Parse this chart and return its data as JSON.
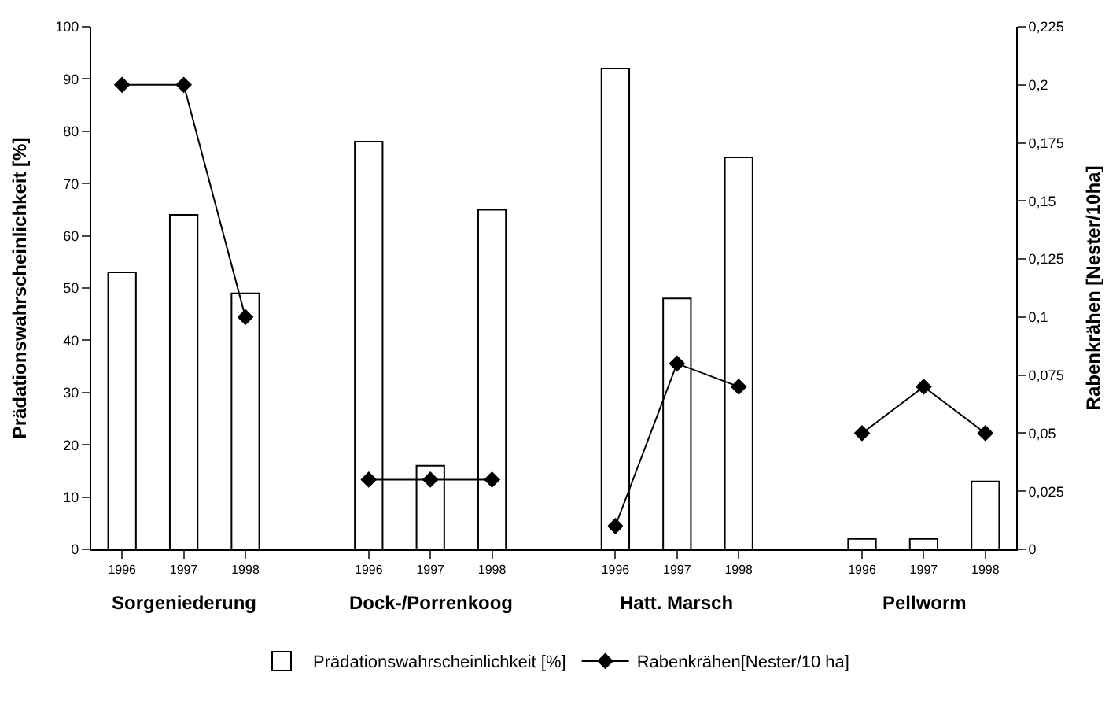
{
  "chart_data": {
    "type": "bar",
    "categories": [
      "1996",
      "1997",
      "1998",
      null,
      "1996",
      "1997",
      "1998",
      null,
      "1996",
      "1997",
      "1998",
      null,
      "1996",
      "1997",
      "1998"
    ],
    "series": [
      {
        "name": "Prädationswahrscheinlichkeit [%]",
        "color": "#ffffff",
        "values": [
          53,
          64,
          49,
          null,
          78,
          16,
          65,
          null,
          92,
          48,
          75,
          null,
          2,
          2,
          13
        ]
      },
      {
        "name": "Rabenkrähen[Nester/10 ha]",
        "type": "line",
        "axis": "y2",
        "color": "#000000",
        "marker": "diamond",
        "line_style": "solid",
        "values": [
          0.2,
          0.2,
          0.1,
          null,
          0.03,
          0.03,
          0.03,
          null,
          0.01,
          0.08,
          0.07,
          null,
          0.05,
          0.07,
          0.05
        ]
      }
    ],
    "ylabel": "Prädationswahrscheinlichkeit [%]",
    "y2label": "Rabenkrähen [Nester/10ha]",
    "ylim": [
      0,
      100
    ],
    "yticks": [
      0,
      10,
      20,
      30,
      40,
      50,
      60,
      70,
      80,
      90,
      100
    ],
    "y2lim": [
      0,
      0.225
    ],
    "y2ticks": [
      0,
      {
        "value": 0.025,
        "label": "0,025"
      },
      {
        "value": 0.05,
        "label": "0,05"
      },
      {
        "value": 0.075,
        "label": "0,075"
      },
      {
        "value": 0.1,
        "label": "0,1"
      },
      {
        "value": 0.125,
        "label": "0,125"
      },
      {
        "value": 0.15,
        "label": "0,15"
      },
      {
        "value": 0.175,
        "label": "0,175"
      },
      {
        "value": 0.2,
        "label": "0,2"
      },
      {
        "value": 0.225,
        "label": "0,225"
      }
    ],
    "annotations": [
      "Sorgeniederung",
      "Dock-/Porrenkoog",
      "Hatt. Marsch",
      "Pellworm"
    ],
    "legend": "bottom"
  }
}
